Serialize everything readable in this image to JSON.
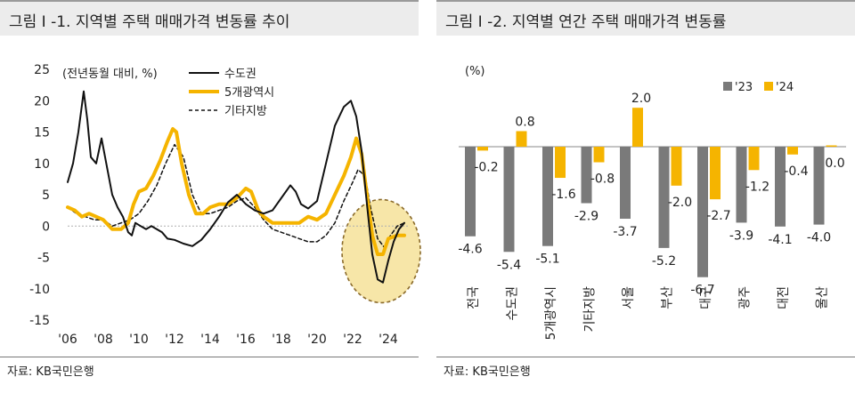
{
  "left": {
    "title": "그림 Ⅰ -1. 지역별 주택 매매가격 변동률 추이",
    "source": "자료: KB국민은행",
    "unit_label": "(전년동월 대비, %)",
    "colors": {
      "capital": "#111111",
      "metro": "#f5b400",
      "other": "#111111",
      "highlight_fill": "#f7e6a8",
      "highlight_stroke": "#8a6a2a"
    }
  },
  "right": {
    "title": "그림 Ⅰ -2. 지역별 연간 주택 매매가격 변동률",
    "source": "자료: KB국민은행",
    "unit_label": "(%)",
    "colors": {
      "y23": "#7a7a7a",
      "y24": "#f5b400"
    }
  },
  "chart_data": [
    {
      "type": "line",
      "title": "그림 Ⅰ -1. 지역별 주택 매매가격 변동률 추이",
      "ylabel": "(전년동월 대비, %)",
      "ylim": [
        -15,
        25
      ],
      "yticks": [
        -15,
        -10,
        -5,
        0,
        5,
        10,
        15,
        20,
        25
      ],
      "xlim": [
        2006,
        2025.2
      ],
      "xticks": [
        2006,
        2008,
        2010,
        2012,
        2014,
        2016,
        2018,
        2020,
        2022,
        2024
      ],
      "xtick_labels": [
        "'06",
        "'08",
        "'10",
        "'12",
        "'14",
        "'16",
        "'18",
        "'20",
        "'22",
        "'24"
      ],
      "annotation": "circle highlighting 2022-2025 decline",
      "series": [
        {
          "name": "수도권",
          "style": "solid-thin",
          "x": [
            2006,
            2006.3,
            2006.6,
            2006.9,
            2007.1,
            2007.3,
            2007.6,
            2007.9,
            2008.2,
            2008.5,
            2008.8,
            2009.1,
            2009.4,
            2009.6,
            2009.8,
            2010.1,
            2010.4,
            2010.7,
            2011,
            2011.3,
            2011.6,
            2012,
            2012.5,
            2013,
            2013.5,
            2014,
            2014.5,
            2015,
            2015.5,
            2016,
            2016.5,
            2017,
            2017.5,
            2018,
            2018.5,
            2018.8,
            2019.1,
            2019.5,
            2020,
            2020.5,
            2021,
            2021.5,
            2021.9,
            2022.2,
            2022.5,
            2022.8,
            2023.1,
            2023.4,
            2023.7,
            2024,
            2024.3,
            2024.6,
            2024.9
          ],
          "values": [
            7,
            10,
            15,
            21.5,
            17,
            11,
            10,
            14,
            9.5,
            5,
            3,
            1.5,
            -1,
            -1.5,
            0.5,
            0,
            -0.5,
            0,
            -0.5,
            -1,
            -2,
            -2.2,
            -2.8,
            -3.2,
            -2.2,
            -0.5,
            1.5,
            3.8,
            5,
            3.5,
            2.5,
            2,
            2.5,
            4.5,
            6.5,
            5.5,
            3.5,
            2.8,
            4,
            10,
            16,
            19,
            20,
            17.5,
            12,
            3.5,
            -4.5,
            -8.5,
            -9,
            -5.5,
            -2.5,
            -0.5,
            0.5
          ]
        },
        {
          "name": "5개광역시",
          "style": "solid-thick",
          "x": [
            2006,
            2006.4,
            2006.8,
            2007.2,
            2007.6,
            2008,
            2008.5,
            2009,
            2009.4,
            2009.7,
            2010,
            2010.4,
            2010.8,
            2011.2,
            2011.6,
            2011.9,
            2012.1,
            2012.4,
            2012.8,
            2013.2,
            2013.6,
            2014,
            2014.5,
            2015,
            2015.5,
            2016,
            2016.3,
            2016.7,
            2017,
            2017.5,
            2018,
            2018.5,
            2019,
            2019.5,
            2020,
            2020.5,
            2021,
            2021.5,
            2021.9,
            2022.2,
            2022.5,
            2022.8,
            2023.1,
            2023.4,
            2023.7,
            2024,
            2024.5,
            2024.9
          ],
          "values": [
            3,
            2.5,
            1.5,
            2,
            1.5,
            1,
            -0.5,
            -0.5,
            0.5,
            3.5,
            5.5,
            6,
            8,
            10.5,
            13.5,
            15.5,
            15,
            10,
            5,
            2,
            2,
            3,
            3.5,
            3.5,
            4.5,
            6,
            5.5,
            2.5,
            1.5,
            0.5,
            0.5,
            0.5,
            0.5,
            1.5,
            1,
            2,
            5,
            8,
            11,
            14,
            11.5,
            5,
            -1.5,
            -4.5,
            -4.5,
            -2,
            -1.5,
            -1.5
          ]
        },
        {
          "name": "기타지방",
          "style": "dashed",
          "x": [
            2006,
            2006.5,
            2007,
            2007.5,
            2008,
            2008.5,
            2009,
            2009.5,
            2010,
            2010.5,
            2011,
            2011.5,
            2012,
            2012.5,
            2013,
            2013.5,
            2014,
            2014.5,
            2015,
            2015.5,
            2016,
            2016.5,
            2017,
            2017.5,
            2018,
            2018.5,
            2019,
            2019.5,
            2020,
            2020.5,
            2021,
            2021.5,
            2022,
            2022.3,
            2022.7,
            2023,
            2023.4,
            2023.8,
            2024,
            2024.5,
            2024.9
          ],
          "values": [
            3,
            2,
            1.5,
            1,
            1,
            0,
            0.5,
            1,
            2,
            4,
            6.5,
            10,
            13,
            11,
            5,
            2,
            2,
            2.5,
            3,
            4,
            4.5,
            3,
            1,
            -0.5,
            -1,
            -1.5,
            -2,
            -2.5,
            -2.5,
            -1.5,
            0.5,
            4,
            7,
            9,
            8,
            3,
            -2,
            -3.5,
            -2,
            0,
            0.5
          ]
        }
      ]
    },
    {
      "type": "bar",
      "title": "그림 Ⅰ -2. 지역별 연간 주택 매매가격 변동률",
      "ylabel": "(%)",
      "categories": [
        "전국",
        "수도권",
        "5개광역시",
        "기타지방",
        "서울",
        "부산",
        "대구",
        "광주",
        "대전",
        "울산"
      ],
      "series": [
        {
          "name": "'23",
          "values": [
            -4.6,
            -5.4,
            -5.1,
            -2.9,
            -3.7,
            -5.2,
            -6.7,
            -3.9,
            -4.1,
            -4.0
          ]
        },
        {
          "name": "'24",
          "values": [
            -0.2,
            0.8,
            -1.6,
            -0.8,
            2.0,
            -2.0,
            -2.7,
            -1.2,
            -0.4,
            0.0
          ]
        }
      ]
    }
  ]
}
